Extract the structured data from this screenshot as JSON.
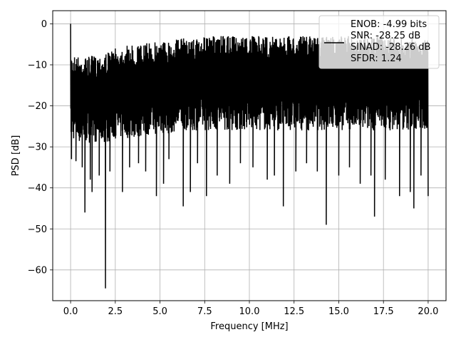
{
  "chart_data": {
    "type": "line",
    "xlabel": "Frequency [MHz]",
    "ylabel": "PSD [dB]",
    "xlim": [
      -1.0,
      21.0
    ],
    "ylim": [
      -67.5,
      3.2
    ],
    "xticks": [
      0.0,
      2.5,
      5.0,
      7.5,
      10.0,
      12.5,
      15.0,
      17.5,
      20.0
    ],
    "xtick_labels": [
      "0.0",
      "2.5",
      "5.0",
      "7.5",
      "10.0",
      "12.5",
      "15.0",
      "17.5",
      "20.0"
    ],
    "yticks": [
      0,
      -10,
      -20,
      -30,
      -40,
      -50,
      -60
    ],
    "ytick_labels": [
      "0",
      "−10",
      "−20",
      "−30",
      "−40",
      "−50",
      "−60"
    ],
    "grid": true,
    "legend_position": "top-right",
    "legend_lines": [
      "ENOB: -4.99 bits",
      "SNR: -28.25 dB",
      "SINAD: -28.26 dB",
      "SFDR: 1.24"
    ],
    "line_color": "#000000",
    "series": [
      {
        "upper_envelope": {
          "x": [
            0.0,
            0.5,
            1.0,
            1.5,
            2.0,
            2.5,
            3.0,
            3.5,
            4.0,
            4.5,
            5.0,
            5.5,
            6.0,
            7.0,
            8.0,
            9.0,
            10.0,
            11.0,
            12.0,
            13.0,
            14.0,
            15.0,
            16.0,
            17.0,
            18.0,
            19.0,
            20.0
          ],
          "y": [
            -7,
            -8,
            -8,
            -7.5,
            -7,
            -6,
            -5.5,
            -5,
            -5,
            -4.5,
            -4,
            -4,
            -3.5,
            -3.5,
            -3,
            -3,
            -3,
            -3,
            -3,
            -3,
            -3,
            -3,
            -3,
            -3,
            -3.5,
            -3.5,
            -4
          ]
        },
        "lower_envelope": {
          "x": [
            0.0,
            0.5,
            1.0,
            1.5,
            2.0,
            2.5,
            3.0,
            3.5,
            4.0,
            4.5,
            5.0,
            5.5,
            6.0,
            7.0,
            8.0,
            9.0,
            10.0,
            11.0,
            12.0,
            13.0,
            14.0,
            15.0,
            16.0,
            17.0,
            18.0,
            19.0,
            20.0
          ],
          "y": [
            -28,
            -29,
            -29,
            -29,
            -29,
            -28,
            -28,
            -28,
            -27.5,
            -27,
            -27,
            -27,
            -26,
            -26,
            -26,
            -26,
            -26,
            -26,
            -26,
            -26,
            -26,
            -26,
            -26,
            -26,
            -26,
            -26,
            -26
          ]
        },
        "peaks": [
          {
            "x": 0.0,
            "y": 0.0
          }
        ],
        "dips": [
          {
            "x": 0.05,
            "y": -33
          },
          {
            "x": 0.3,
            "y": -33.5
          },
          {
            "x": 0.65,
            "y": -35
          },
          {
            "x": 0.8,
            "y": -46
          },
          {
            "x": 1.1,
            "y": -38
          },
          {
            "x": 1.2,
            "y": -41
          },
          {
            "x": 1.6,
            "y": -37
          },
          {
            "x": 1.95,
            "y": -64.5
          },
          {
            "x": 2.2,
            "y": -36
          },
          {
            "x": 2.9,
            "y": -41
          },
          {
            "x": 3.3,
            "y": -35
          },
          {
            "x": 3.8,
            "y": -34
          },
          {
            "x": 4.2,
            "y": -36
          },
          {
            "x": 4.8,
            "y": -42
          },
          {
            "x": 5.2,
            "y": -39
          },
          {
            "x": 5.5,
            "y": -33
          },
          {
            "x": 6.3,
            "y": -44.5
          },
          {
            "x": 6.7,
            "y": -41
          },
          {
            "x": 7.1,
            "y": -34
          },
          {
            "x": 7.6,
            "y": -42
          },
          {
            "x": 8.2,
            "y": -37
          },
          {
            "x": 8.9,
            "y": -39
          },
          {
            "x": 9.5,
            "y": -34
          },
          {
            "x": 10.2,
            "y": -35
          },
          {
            "x": 11.0,
            "y": -38
          },
          {
            "x": 11.4,
            "y": -37
          },
          {
            "x": 11.9,
            "y": -44.5
          },
          {
            "x": 12.6,
            "y": -36
          },
          {
            "x": 13.2,
            "y": -34
          },
          {
            "x": 13.8,
            "y": -36
          },
          {
            "x": 14.3,
            "y": -49
          },
          {
            "x": 15.0,
            "y": -37
          },
          {
            "x": 15.6,
            "y": -35
          },
          {
            "x": 16.2,
            "y": -39
          },
          {
            "x": 16.8,
            "y": -37
          },
          {
            "x": 17.0,
            "y": -47
          },
          {
            "x": 17.6,
            "y": -38
          },
          {
            "x": 18.4,
            "y": -42
          },
          {
            "x": 19.0,
            "y": -41
          },
          {
            "x": 19.2,
            "y": -45
          },
          {
            "x": 19.6,
            "y": -37
          },
          {
            "x": 20.0,
            "y": -42
          }
        ]
      }
    ]
  }
}
